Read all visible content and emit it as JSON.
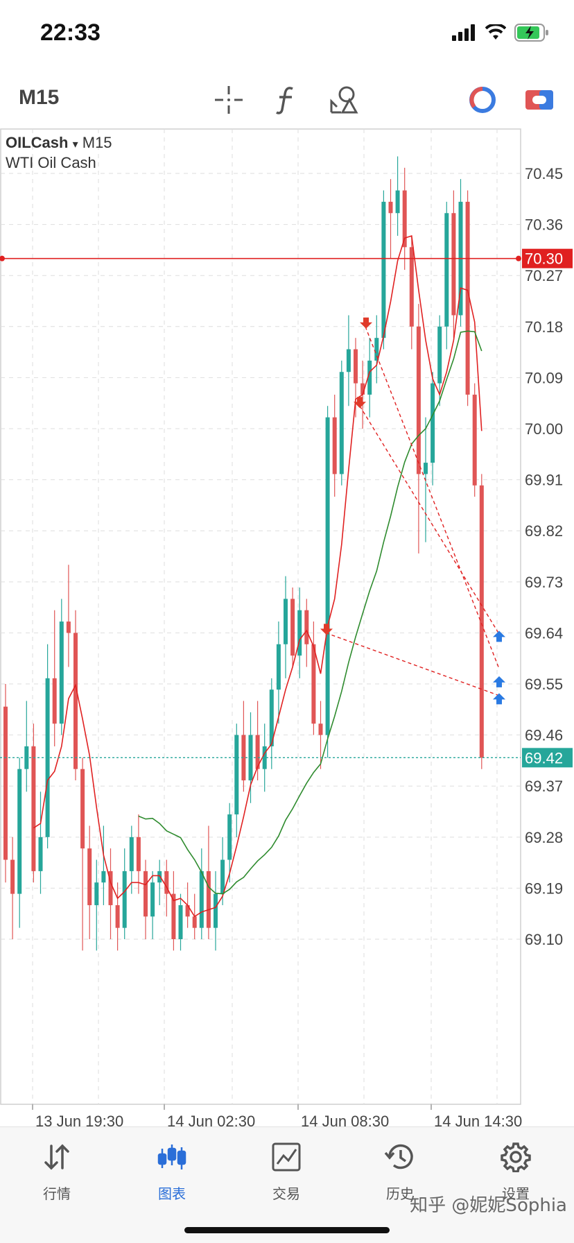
{
  "status_bar": {
    "time": "22:33"
  },
  "toolbar": {
    "timeframe": "M15"
  },
  "chart": {
    "symbol": "OILCash",
    "dropdown_glyph": "▾",
    "timeframe": "M15",
    "description": "WTI Oil Cash",
    "price_axis": [
      "70.45",
      "70.36",
      "70.27",
      "70.18",
      "70.09",
      "70.00",
      "69.91",
      "69.82",
      "69.73",
      "69.64",
      "69.55",
      "69.46",
      "69.37",
      "69.28",
      "69.19",
      "69.10"
    ],
    "time_axis": [
      "13 Jun 19:30",
      "14 Jun 02:30",
      "14 Jun 08:30",
      "14 Jun 14:30"
    ],
    "alert_level": "70.30",
    "current_price": "69.42",
    "colors": {
      "bull": "#26a69a",
      "bear": "#e05555",
      "fast_ma": "#e02020",
      "slow_ma": "#2e8b2e",
      "alert": "#e02020",
      "buy_arrow": "#2a7ae2",
      "sell_arrow": "#e03a2a"
    }
  },
  "tabs": [
    {
      "label": "行情",
      "icon": "quotes-arrows-icon"
    },
    {
      "label": "图表",
      "icon": "candlestick-chart-icon",
      "active": true
    },
    {
      "label": "交易",
      "icon": "trade-line-chart-icon"
    },
    {
      "label": "历史",
      "icon": "history-clock-icon"
    },
    {
      "label": "设置",
      "icon": "settings-gear-icon"
    }
  ],
  "watermark": "知乎 @妮妮Sophia"
}
